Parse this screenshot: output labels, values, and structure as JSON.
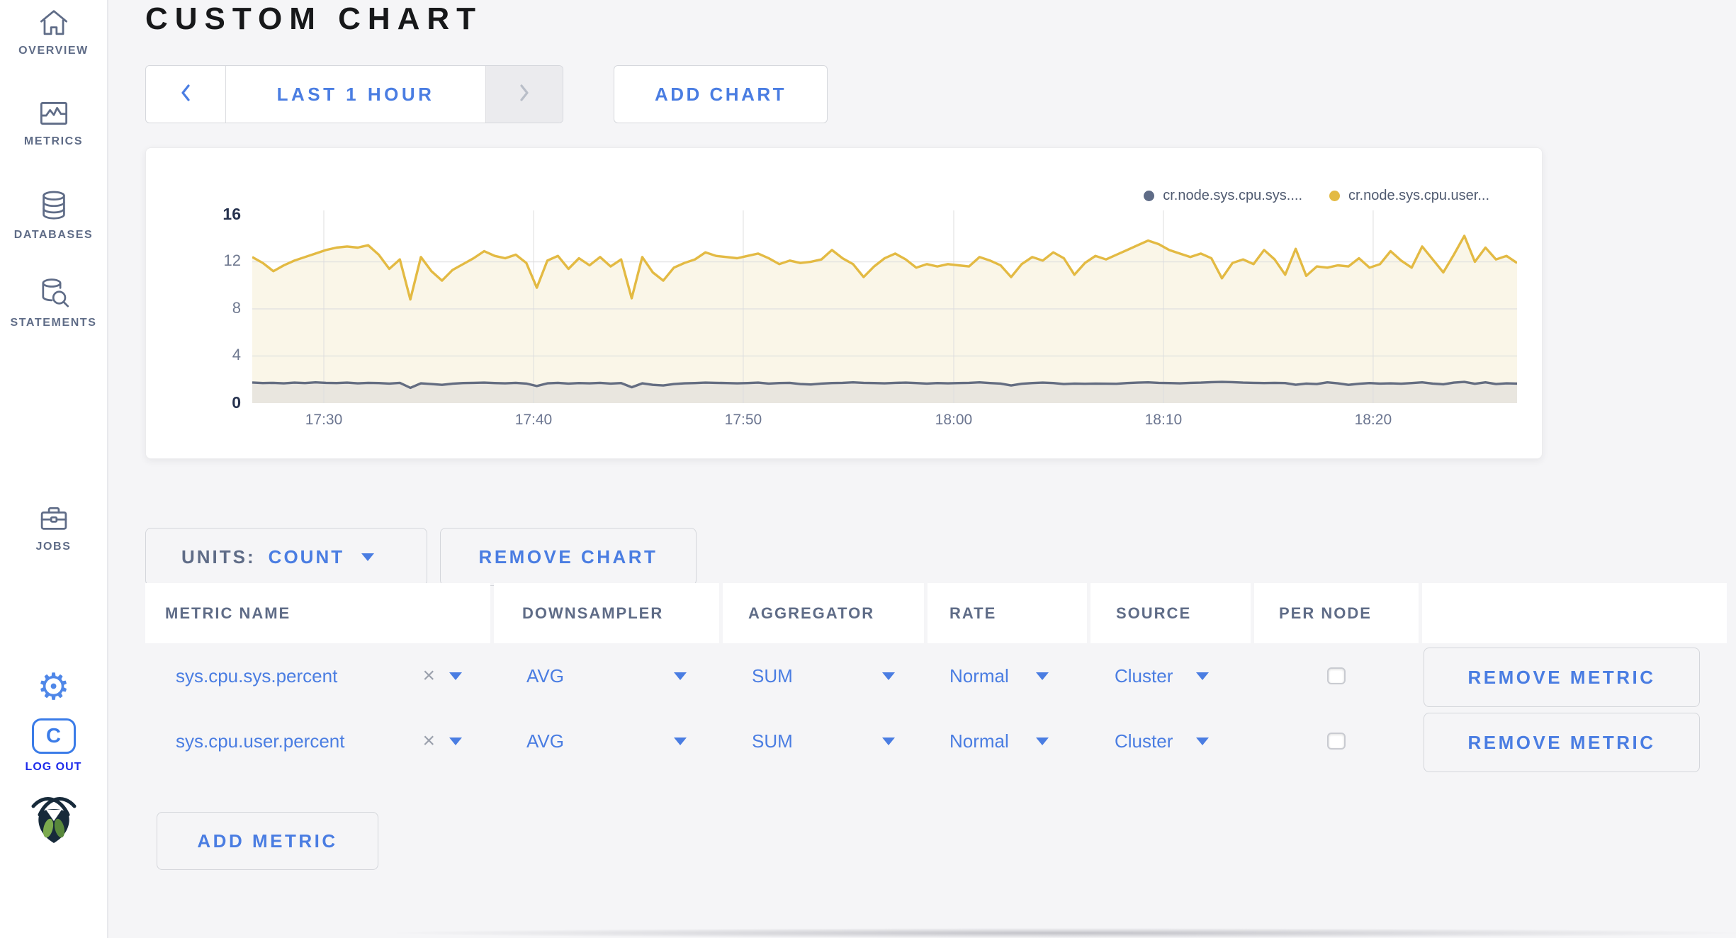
{
  "sidebar": {
    "items": [
      {
        "label": "OVERVIEW",
        "icon": "home-icon"
      },
      {
        "label": "METRICS",
        "icon": "metrics-chart-icon"
      },
      {
        "label": "DATABASES",
        "icon": "database-icon"
      },
      {
        "label": "STATEMENTS",
        "icon": "statements-search-icon"
      },
      {
        "label": "JOBS",
        "icon": "jobs-briefcase-icon"
      }
    ],
    "settings_icon": "gear-icon",
    "settings_glyph": "⚙",
    "logout": {
      "label": "LOG OUT",
      "icon": "cockroach-c-icon",
      "glyph": "C"
    },
    "brand_icon": "cockroachdb-bug-logo"
  },
  "header": {
    "title": "CUSTOM CHART"
  },
  "toolbar": {
    "time_range": "LAST 1 HOUR",
    "prev_icon": "chevron-left-icon",
    "next_icon": "chevron-right-icon",
    "add_chart": "ADD CHART"
  },
  "chart_controls": {
    "units_label": "UNITS:",
    "units_value": "COUNT",
    "remove_chart": "REMOVE CHART",
    "add_metric": "ADD METRIC"
  },
  "table": {
    "headers": [
      "METRIC NAME",
      "DOWNSAMPLER",
      "AGGREGATOR",
      "RATE",
      "SOURCE",
      "PER NODE",
      ""
    ],
    "rows": [
      {
        "metric": "sys.cpu.sys.percent",
        "clear": "×",
        "downsampler": "AVG",
        "aggregator": "SUM",
        "rate": "Normal",
        "source": "Cluster",
        "per_node_checked": false,
        "remove_label": "REMOVE METRIC"
      },
      {
        "metric": "sys.cpu.user.percent",
        "clear": "×",
        "downsampler": "AVG",
        "aggregator": "SUM",
        "rate": "Normal",
        "source": "Cluster",
        "per_node_checked": false,
        "remove_label": "REMOVE METRIC"
      }
    ]
  },
  "chart_data": {
    "type": "line",
    "title": "",
    "x_range": [
      "17:27",
      "18:27"
    ],
    "ylim": [
      0,
      16.36
    ],
    "grid": true,
    "legend_position": "top-right",
    "legend": [
      {
        "label": "cr.node.sys.cpu.sys....",
        "color": "#5F6C87"
      },
      {
        "label": "cr.node.sys.cpu.user...",
        "color": "#E3BA43"
      }
    ],
    "x_ticks": {
      "labels": [
        "17:30",
        "17:40",
        "17:50",
        "18:00",
        "18:10",
        "18:20"
      ],
      "fracs": [
        0.0566,
        0.2224,
        0.3882,
        0.5546,
        0.7204,
        0.8862
      ]
    },
    "y_ticks": [
      {
        "value": 16,
        "strong": true
      },
      {
        "value": 12,
        "strong": false
      },
      {
        "value": 8,
        "strong": false
      },
      {
        "value": 4,
        "strong": false
      },
      {
        "value": 0,
        "strong": true
      }
    ],
    "draw_order": [
      1,
      0
    ],
    "series": [
      {
        "name": "cr.node.sys.cpu.sys.percent",
        "color": "#646D81",
        "fill": "#E9E6DF",
        "values": [
          1.75,
          1.7,
          1.72,
          1.68,
          1.74,
          1.7,
          1.76,
          1.72,
          1.7,
          1.74,
          1.68,
          1.72,
          1.7,
          1.66,
          1.72,
          1.3,
          1.68,
          1.62,
          1.55,
          1.65,
          1.7,
          1.72,
          1.74,
          1.7,
          1.68,
          1.72,
          1.66,
          1.45,
          1.68,
          1.72,
          1.66,
          1.7,
          1.68,
          1.72,
          1.66,
          1.7,
          1.35,
          1.68,
          1.55,
          1.5,
          1.62,
          1.68,
          1.7,
          1.74,
          1.72,
          1.7,
          1.68,
          1.7,
          1.74,
          1.66,
          1.7,
          1.72,
          1.62,
          1.58,
          1.66,
          1.7,
          1.72,
          1.76,
          1.72,
          1.7,
          1.68,
          1.72,
          1.74,
          1.7,
          1.66,
          1.7,
          1.68,
          1.7,
          1.72,
          1.76,
          1.7,
          1.66,
          1.5,
          1.64,
          1.7,
          1.74,
          1.7,
          1.62,
          1.66,
          1.64,
          1.66,
          1.65,
          1.64,
          1.7,
          1.74,
          1.76,
          1.72,
          1.7,
          1.68,
          1.72,
          1.74,
          1.78,
          1.8,
          1.78,
          1.74,
          1.72,
          1.7,
          1.72,
          1.7,
          1.56,
          1.66,
          1.62,
          1.76,
          1.68,
          1.55,
          1.64,
          1.7,
          1.66,
          1.68,
          1.65,
          1.7,
          1.76,
          1.66,
          1.6,
          1.74,
          1.8,
          1.64,
          1.76,
          1.62,
          1.68,
          1.66
        ]
      },
      {
        "name": "cr.node.sys.cpu.user.percent",
        "color": "#E3BA43",
        "fill": "#FAF6E8",
        "values": [
          12.4,
          11.9,
          11.2,
          11.7,
          12.1,
          12.4,
          12.7,
          13.0,
          13.2,
          13.3,
          13.2,
          13.4,
          12.6,
          11.4,
          12.2,
          8.8,
          12.4,
          11.2,
          10.4,
          11.3,
          11.8,
          12.3,
          12.9,
          12.5,
          12.3,
          12.6,
          11.9,
          9.8,
          12.1,
          12.5,
          11.4,
          12.3,
          11.7,
          12.4,
          11.6,
          12.2,
          8.9,
          12.4,
          11.1,
          10.4,
          11.5,
          11.9,
          12.2,
          12.8,
          12.5,
          12.4,
          12.3,
          12.5,
          12.7,
          12.3,
          11.8,
          12.1,
          11.9,
          12.0,
          12.2,
          13.0,
          12.3,
          11.8,
          10.7,
          11.6,
          12.3,
          12.7,
          12.2,
          11.5,
          11.8,
          11.6,
          11.8,
          11.7,
          11.6,
          12.4,
          12.1,
          11.7,
          10.7,
          11.8,
          12.4,
          12.1,
          12.8,
          12.3,
          10.9,
          11.9,
          12.5,
          12.2,
          12.6,
          13.0,
          13.4,
          13.8,
          13.5,
          13.0,
          12.7,
          12.4,
          12.7,
          12.3,
          10.6,
          11.9,
          12.2,
          11.8,
          13.0,
          12.2,
          10.9,
          13.1,
          10.8,
          11.6,
          11.5,
          11.7,
          11.6,
          12.3,
          11.5,
          11.8,
          12.9,
          12.1,
          11.5,
          13.3,
          12.2,
          11.1,
          12.6,
          14.2,
          12.0,
          13.2,
          12.2,
          12.5,
          11.9
        ]
      }
    ]
  }
}
